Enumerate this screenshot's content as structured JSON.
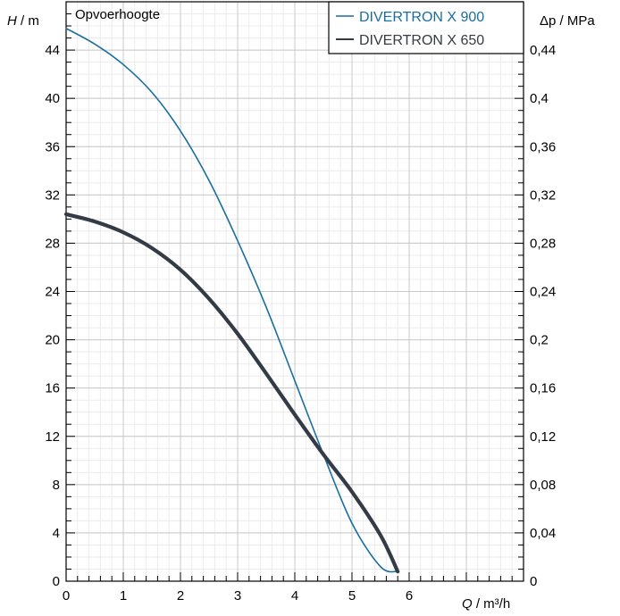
{
  "chart_data": {
    "type": "line",
    "title": "Opvoerhoogte",
    "xlabel": {
      "symbol": "Q",
      "unit": " / m³/h"
    },
    "ylabel_left": {
      "symbol": "H",
      "unit": " / m"
    },
    "ylabel_right": {
      "symbol": "Δp",
      "unit": " / MPa"
    },
    "xlim": [
      0,
      8
    ],
    "ylim": [
      0,
      48
    ],
    "y2lim": [
      0,
      0.48
    ],
    "x_ticks": [
      "0",
      "1",
      "2",
      "3",
      "4",
      "5",
      "6"
    ],
    "y_ticks": [
      "0",
      "4",
      "8",
      "12",
      "16",
      "20",
      "24",
      "28",
      "32",
      "36",
      "40",
      "44"
    ],
    "y2_ticks": [
      "0",
      "0,04",
      "0,08",
      "0,12",
      "0,16",
      "0,2",
      "0,24",
      "0,28",
      "0,32",
      "0,36",
      "0,4",
      "0,44"
    ],
    "grid": true,
    "legend_position": "top-right",
    "series": [
      {
        "name": "DIVERTRON X 900",
        "color": "#1a6e9e",
        "x": [
          0,
          0.5,
          1,
          1.5,
          2,
          2.5,
          3,
          3.5,
          4,
          4.5,
          5,
          5.5,
          5.8
        ],
        "y": [
          45.8,
          44.5,
          42.8,
          40.5,
          37.3,
          33.2,
          28.2,
          22.7,
          16.6,
          10.5,
          4.8,
          1.2,
          0.8
        ]
      },
      {
        "name": "DIVERTRON X 650",
        "color": "#333b46",
        "x": [
          0,
          0.5,
          1,
          1.5,
          2,
          2.5,
          3,
          3.5,
          4,
          4.5,
          5,
          5.5,
          5.8
        ],
        "y": [
          30.4,
          29.8,
          28.9,
          27.6,
          25.8,
          23.4,
          20.5,
          17.2,
          13.8,
          10.5,
          7.4,
          3.8,
          0.8
        ]
      }
    ]
  }
}
